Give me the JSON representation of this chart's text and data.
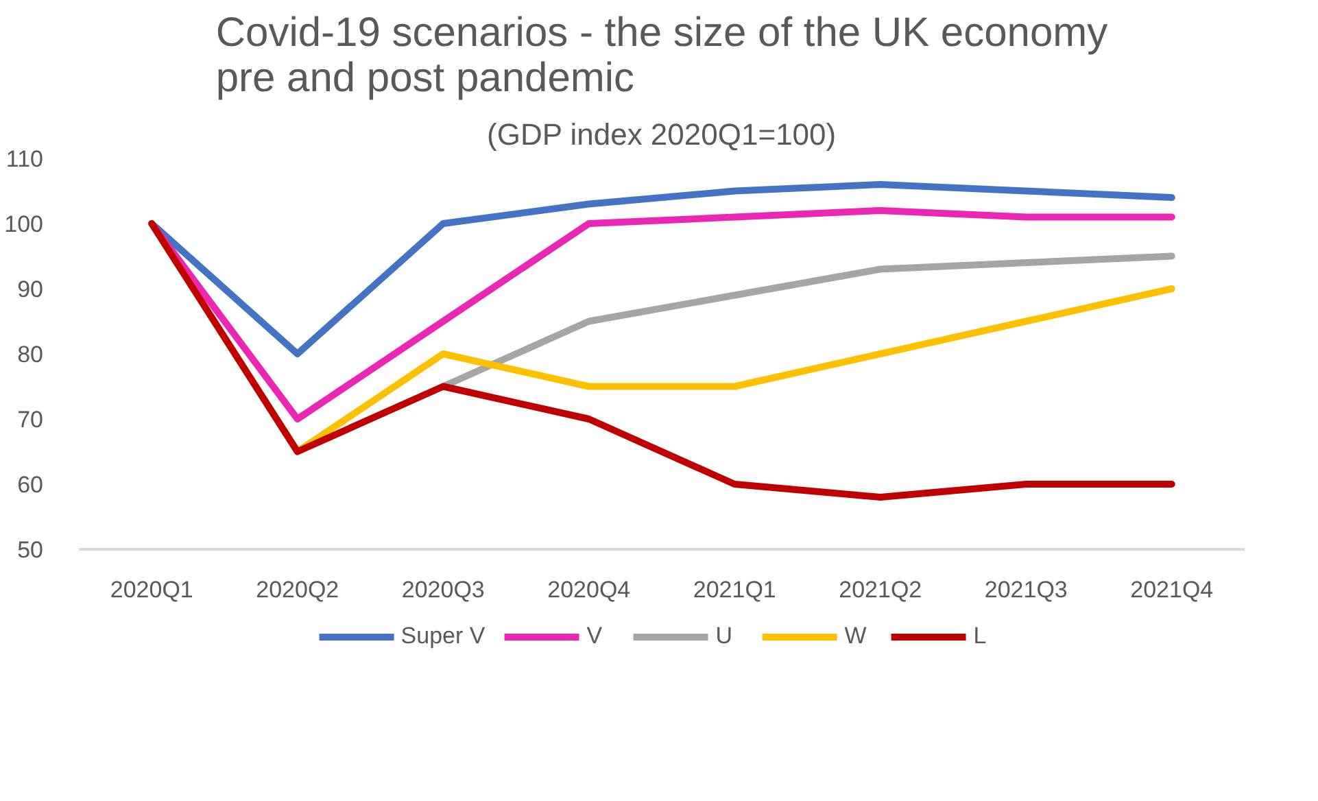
{
  "chart_data": {
    "type": "line",
    "title": "Covid-19 scenarios - the size of the UK economy\npre and post pandemic",
    "subtitle": "(GDP index 2020Q1=100)",
    "categories": [
      "2020Q1",
      "2020Q2",
      "2020Q3",
      "2020Q4",
      "2021Q1",
      "2021Q2",
      "2021Q3",
      "2021Q4"
    ],
    "series": [
      {
        "name": "Super V",
        "color": "#4472c4",
        "values": [
          100,
          80,
          100,
          103,
          105,
          106,
          105,
          104
        ]
      },
      {
        "name": "V",
        "color": "#ec26b4",
        "values": [
          100,
          70,
          85,
          100,
          101,
          102,
          101,
          101
        ]
      },
      {
        "name": "U",
        "color": "#a5a5a5",
        "values": [
          null,
          null,
          75,
          85,
          89,
          93,
          94,
          95
        ]
      },
      {
        "name": "W",
        "color": "#ffc000",
        "values": [
          100,
          65,
          80,
          75,
          75,
          80,
          85,
          90
        ]
      },
      {
        "name": "L",
        "color": "#c00000",
        "values": [
          100,
          65,
          75,
          70,
          60,
          58,
          60,
          60
        ]
      }
    ],
    "ylim": [
      50,
      110
    ],
    "yticks": [
      50,
      60,
      70,
      80,
      90,
      100,
      110
    ],
    "grid": false,
    "legend": "bottom",
    "marker": "none",
    "line_style": "solid"
  }
}
